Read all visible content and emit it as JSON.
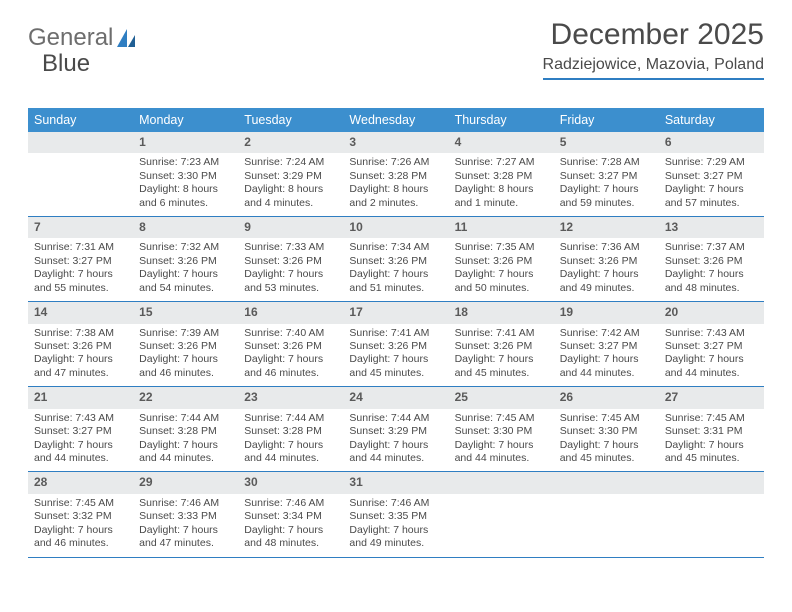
{
  "logo": {
    "text1": "General",
    "text2": "Blue"
  },
  "header": {
    "title": "December 2025",
    "subtitle": "Radziejowice, Mazovia, Poland"
  },
  "colors": {
    "header_bg": "#3c8fce",
    "rule": "#2f7ec2",
    "daynum_bg": "#e8eaeb",
    "text": "#4a4a4a",
    "logo_gray": "#6d6d6d",
    "logo_blue": "#2f7ec2"
  },
  "typography": {
    "title_fontsize": 30,
    "subtitle_fontsize": 16,
    "dayhead_fontsize": 12.5,
    "daynum_fontsize": 12,
    "cell_fontsize": 10.5
  },
  "dayNames": [
    "Sunday",
    "Monday",
    "Tuesday",
    "Wednesday",
    "Thursday",
    "Friday",
    "Saturday"
  ],
  "startDayIndex": 1,
  "daysInMonth": 31,
  "days": [
    {
      "n": 1,
      "sunrise": "7:23 AM",
      "sunset": "3:30 PM",
      "daylight": "8 hours and 6 minutes."
    },
    {
      "n": 2,
      "sunrise": "7:24 AM",
      "sunset": "3:29 PM",
      "daylight": "8 hours and 4 minutes."
    },
    {
      "n": 3,
      "sunrise": "7:26 AM",
      "sunset": "3:28 PM",
      "daylight": "8 hours and 2 minutes."
    },
    {
      "n": 4,
      "sunrise": "7:27 AM",
      "sunset": "3:28 PM",
      "daylight": "8 hours and 1 minute."
    },
    {
      "n": 5,
      "sunrise": "7:28 AM",
      "sunset": "3:27 PM",
      "daylight": "7 hours and 59 minutes."
    },
    {
      "n": 6,
      "sunrise": "7:29 AM",
      "sunset": "3:27 PM",
      "daylight": "7 hours and 57 minutes."
    },
    {
      "n": 7,
      "sunrise": "7:31 AM",
      "sunset": "3:27 PM",
      "daylight": "7 hours and 55 minutes."
    },
    {
      "n": 8,
      "sunrise": "7:32 AM",
      "sunset": "3:26 PM",
      "daylight": "7 hours and 54 minutes."
    },
    {
      "n": 9,
      "sunrise": "7:33 AM",
      "sunset": "3:26 PM",
      "daylight": "7 hours and 53 minutes."
    },
    {
      "n": 10,
      "sunrise": "7:34 AM",
      "sunset": "3:26 PM",
      "daylight": "7 hours and 51 minutes."
    },
    {
      "n": 11,
      "sunrise": "7:35 AM",
      "sunset": "3:26 PM",
      "daylight": "7 hours and 50 minutes."
    },
    {
      "n": 12,
      "sunrise": "7:36 AM",
      "sunset": "3:26 PM",
      "daylight": "7 hours and 49 minutes."
    },
    {
      "n": 13,
      "sunrise": "7:37 AM",
      "sunset": "3:26 PM",
      "daylight": "7 hours and 48 minutes."
    },
    {
      "n": 14,
      "sunrise": "7:38 AM",
      "sunset": "3:26 PM",
      "daylight": "7 hours and 47 minutes."
    },
    {
      "n": 15,
      "sunrise": "7:39 AM",
      "sunset": "3:26 PM",
      "daylight": "7 hours and 46 minutes."
    },
    {
      "n": 16,
      "sunrise": "7:40 AM",
      "sunset": "3:26 PM",
      "daylight": "7 hours and 46 minutes."
    },
    {
      "n": 17,
      "sunrise": "7:41 AM",
      "sunset": "3:26 PM",
      "daylight": "7 hours and 45 minutes."
    },
    {
      "n": 18,
      "sunrise": "7:41 AM",
      "sunset": "3:26 PM",
      "daylight": "7 hours and 45 minutes."
    },
    {
      "n": 19,
      "sunrise": "7:42 AM",
      "sunset": "3:27 PM",
      "daylight": "7 hours and 44 minutes."
    },
    {
      "n": 20,
      "sunrise": "7:43 AM",
      "sunset": "3:27 PM",
      "daylight": "7 hours and 44 minutes."
    },
    {
      "n": 21,
      "sunrise": "7:43 AM",
      "sunset": "3:27 PM",
      "daylight": "7 hours and 44 minutes."
    },
    {
      "n": 22,
      "sunrise": "7:44 AM",
      "sunset": "3:28 PM",
      "daylight": "7 hours and 44 minutes."
    },
    {
      "n": 23,
      "sunrise": "7:44 AM",
      "sunset": "3:28 PM",
      "daylight": "7 hours and 44 minutes."
    },
    {
      "n": 24,
      "sunrise": "7:44 AM",
      "sunset": "3:29 PM",
      "daylight": "7 hours and 44 minutes."
    },
    {
      "n": 25,
      "sunrise": "7:45 AM",
      "sunset": "3:30 PM",
      "daylight": "7 hours and 44 minutes."
    },
    {
      "n": 26,
      "sunrise": "7:45 AM",
      "sunset": "3:30 PM",
      "daylight": "7 hours and 45 minutes."
    },
    {
      "n": 27,
      "sunrise": "7:45 AM",
      "sunset": "3:31 PM",
      "daylight": "7 hours and 45 minutes."
    },
    {
      "n": 28,
      "sunrise": "7:45 AM",
      "sunset": "3:32 PM",
      "daylight": "7 hours and 46 minutes."
    },
    {
      "n": 29,
      "sunrise": "7:46 AM",
      "sunset": "3:33 PM",
      "daylight": "7 hours and 47 minutes."
    },
    {
      "n": 30,
      "sunrise": "7:46 AM",
      "sunset": "3:34 PM",
      "daylight": "7 hours and 48 minutes."
    },
    {
      "n": 31,
      "sunrise": "7:46 AM",
      "sunset": "3:35 PM",
      "daylight": "7 hours and 49 minutes."
    }
  ],
  "labels": {
    "sunrise": "Sunrise:",
    "sunset": "Sunset:",
    "daylight": "Daylight:"
  }
}
